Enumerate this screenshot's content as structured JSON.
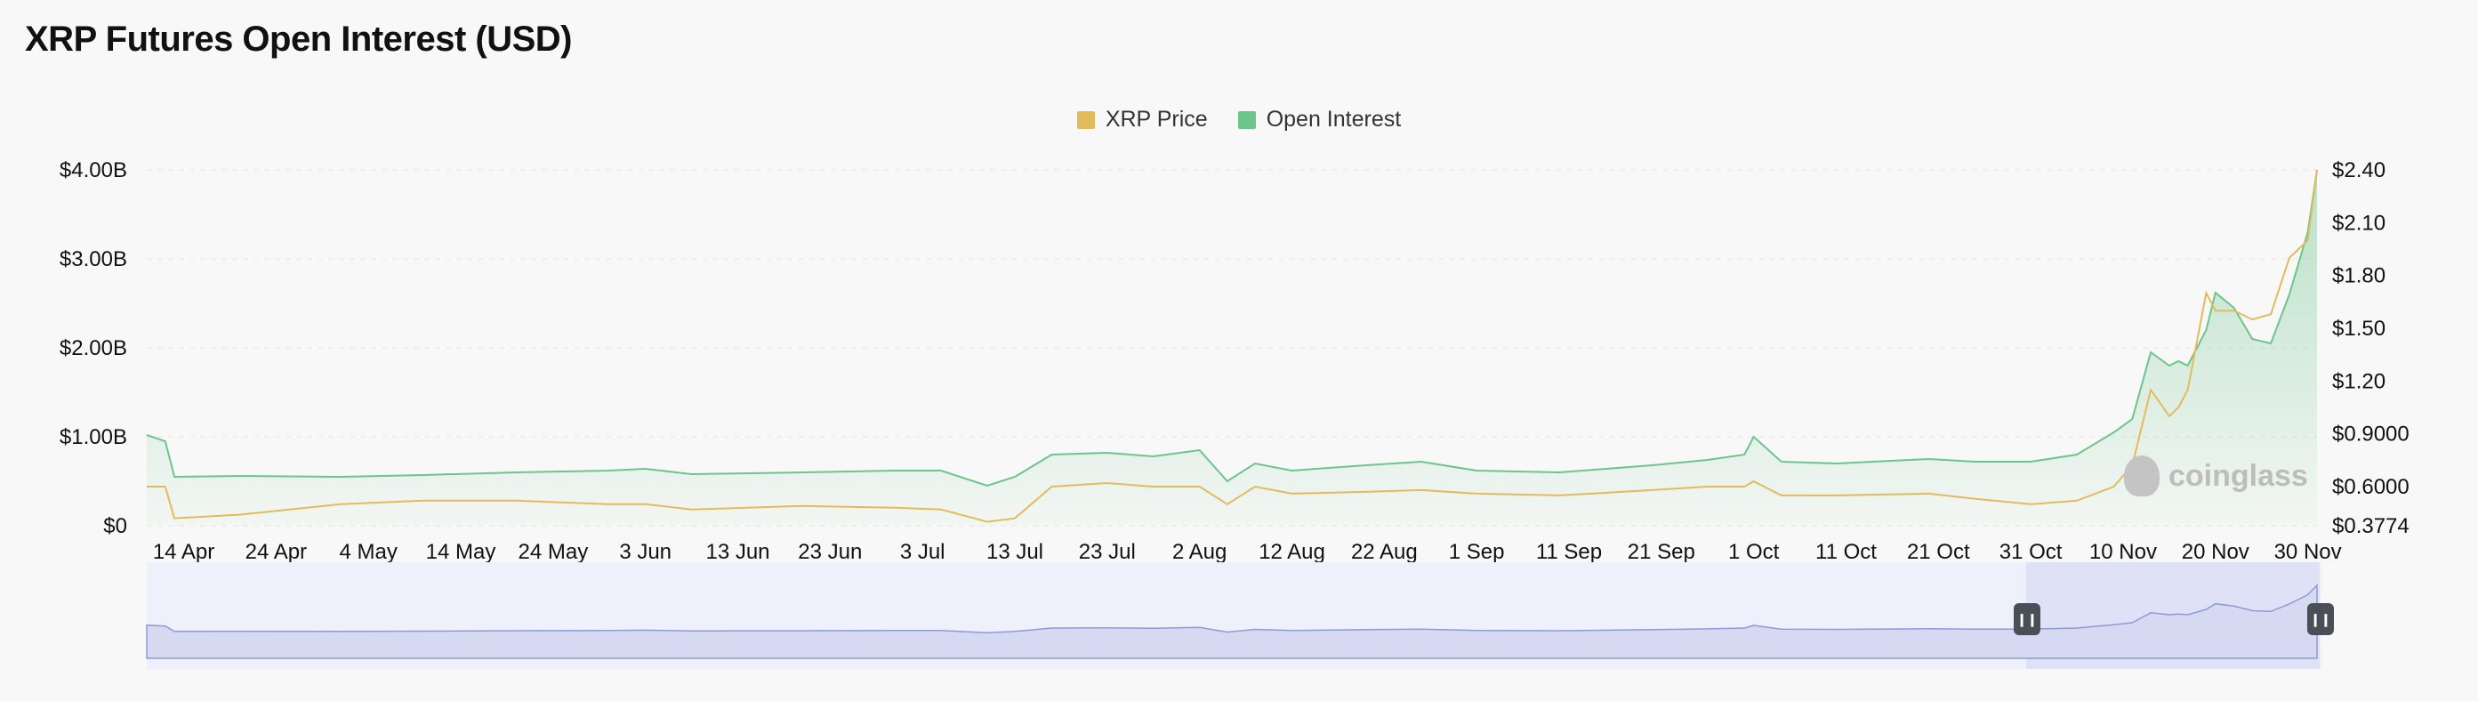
{
  "title": "XRP Futures Open Interest (USD)",
  "legend": [
    {
      "label": "XRP Price",
      "color": "#e3bb5c"
    },
    {
      "label": "Open Interest",
      "color": "#6cc58b"
    }
  ],
  "watermark": "coinglass",
  "chart_data": {
    "type": "area",
    "title": "XRP Futures Open Interest (USD)",
    "x_tick_labels": [
      "14 Apr",
      "24 Apr",
      "4 May",
      "14 May",
      "24 May",
      "3 Jun",
      "13 Jun",
      "23 Jun",
      "3 Jul",
      "13 Jul",
      "23 Jul",
      "2 Aug",
      "12 Aug",
      "22 Aug",
      "1 Sep",
      "11 Sep",
      "21 Sep",
      "1 Oct",
      "11 Oct",
      "21 Oct",
      "31 Oct",
      "10 Nov",
      "20 Nov",
      "30 Nov"
    ],
    "y_left_ticks": [
      "$0",
      "$1.00B",
      "$2.00B",
      "$3.00B",
      "$4.00B"
    ],
    "y_left_range": [
      0,
      4.0
    ],
    "y_left_unit": "B USD",
    "y_right_ticks": [
      "$0.3774",
      "$0.6000",
      "$0.9000",
      "$1.20",
      "$1.50",
      "$1.80",
      "$2.10",
      "$2.40"
    ],
    "y_right_range": [
      0.3774,
      2.4
    ],
    "grid": "horizontal dashed",
    "legend_position": "top-center",
    "x_dates": [
      "Apr 10",
      "Apr 12",
      "Apr 13",
      "Apr 20",
      "May 1",
      "May 10",
      "May 20",
      "May 30",
      "Jun 3",
      "Jun 8",
      "Jun 20",
      "Jun 30",
      "Jul 5",
      "Jul 10",
      "Jul 13",
      "Jul 17",
      "Jul 23",
      "Jul 28",
      "Aug 2",
      "Aug 5",
      "Aug 8",
      "Aug 12",
      "Aug 20",
      "Aug 26",
      "Sep 1",
      "Sep 10",
      "Sep 20",
      "Sep 26",
      "Sep 30",
      "Oct 1",
      "Oct 4",
      "Oct 10",
      "Oct 20",
      "Oct 25",
      "Oct 31",
      "Nov 5",
      "Nov 9",
      "Nov 11",
      "Nov 13",
      "Nov 15",
      "Nov 16",
      "Nov 17",
      "Nov 19",
      "Nov 20",
      "Nov 22",
      "Nov 24",
      "Nov 26",
      "Nov 28",
      "Nov 30",
      "Dec 1"
    ],
    "series": [
      {
        "name": "Open Interest",
        "axis": "left",
        "color": "#6cc58b",
        "values": [
          1.02,
          0.95,
          0.55,
          0.56,
          0.55,
          0.57,
          0.6,
          0.62,
          0.64,
          0.58,
          0.6,
          0.62,
          0.62,
          0.45,
          0.55,
          0.8,
          0.82,
          0.78,
          0.85,
          0.5,
          0.7,
          0.62,
          0.68,
          0.72,
          0.62,
          0.6,
          0.68,
          0.74,
          0.8,
          1.0,
          0.72,
          0.7,
          0.75,
          0.72,
          0.72,
          0.8,
          1.05,
          1.2,
          1.95,
          1.8,
          1.85,
          1.8,
          2.2,
          2.62,
          2.45,
          2.1,
          2.05,
          2.6,
          3.3,
          4.0
        ]
      },
      {
        "name": "XRP Price",
        "axis": "right",
        "color": "#e3bb5c",
        "values": [
          0.6,
          0.6,
          0.42,
          0.44,
          0.5,
          0.52,
          0.52,
          0.5,
          0.5,
          0.47,
          0.49,
          0.48,
          0.47,
          0.4,
          0.42,
          0.6,
          0.62,
          0.6,
          0.6,
          0.5,
          0.6,
          0.56,
          0.57,
          0.58,
          0.56,
          0.55,
          0.58,
          0.6,
          0.6,
          0.63,
          0.55,
          0.55,
          0.56,
          0.53,
          0.5,
          0.52,
          0.6,
          0.72,
          1.15,
          1.0,
          1.05,
          1.15,
          1.7,
          1.6,
          1.6,
          1.55,
          1.58,
          1.9,
          2.0,
          2.4
        ]
      }
    ]
  }
}
